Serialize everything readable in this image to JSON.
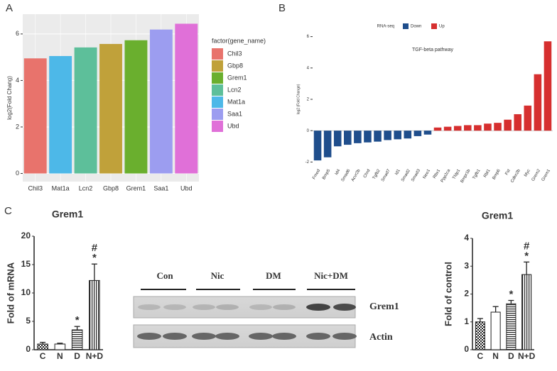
{
  "panel_labels": [
    "A",
    "B",
    "C"
  ],
  "chart_data": [
    {
      "type": "bar",
      "y_label": "log2(Fold Chang)",
      "categories": [
        "Chil3",
        "Mat1a",
        "Lcn2",
        "Gbp8",
        "Grem1",
        "Saa1",
        "Ubd"
      ],
      "values": [
        4.95,
        5.05,
        5.42,
        5.57,
        5.73,
        6.19,
        6.44
      ],
      "colors": [
        "#e8736c",
        "#4db8e8",
        "#5dbf9a",
        "#c0a13a",
        "#6aaf2e",
        "#9c9df0",
        "#e070d8"
      ],
      "ylim": [
        -0.35,
        6.85
      ],
      "yticks": [
        0,
        2,
        4,
        6
      ],
      "grid": true,
      "panel_background": "#ebebeb",
      "legend_title": "factor(gene_name)",
      "legend": [
        {
          "name": "Chil3",
          "color": "#e8736c"
        },
        {
          "name": "Gbp8",
          "color": "#c0a13a"
        },
        {
          "name": "Grem1",
          "color": "#6aaf2e"
        },
        {
          "name": "Lcn2",
          "color": "#5dbf9a"
        },
        {
          "name": "Mat1a",
          "color": "#4db8e8"
        },
        {
          "name": "Saa1",
          "color": "#9c9df0"
        },
        {
          "name": "Ubd",
          "color": "#e070d8"
        }
      ]
    },
    {
      "type": "bar",
      "title": "TGF-beta pathway",
      "y_label": "log2 (Fold Change)",
      "legend_title": "RNA-seq",
      "categories": [
        "Fmod",
        "Bmp5",
        "Id4",
        "Smad6",
        "Acvr2b",
        "Chrd",
        "Tgfb2",
        "Smad7",
        "Id1",
        "Smad2",
        "Smad3",
        "Neo1",
        "Rbx1",
        "Ppp2ca",
        "Tfdp1",
        "Bmpr1b",
        "Tgfb1",
        "Rbl1",
        "Bmp6",
        "Fst",
        "Cdkn2b",
        "Myc",
        "Grem2",
        "Grem1"
      ],
      "series": [
        {
          "name": "Down",
          "color": "#1f4e8c",
          "values": [
            -1.9,
            -1.7,
            -1.0,
            -0.9,
            -0.8,
            -0.75,
            -0.7,
            -0.6,
            -0.55,
            -0.5,
            -0.35,
            -0.25,
            null,
            null,
            null,
            null,
            null,
            null,
            null,
            null,
            null,
            null,
            null,
            null
          ]
        },
        {
          "name": "Up",
          "color": "#d62f2f",
          "values": [
            null,
            null,
            null,
            null,
            null,
            null,
            null,
            null,
            null,
            null,
            null,
            null,
            0.2,
            0.25,
            0.3,
            0.35,
            0.35,
            0.45,
            0.5,
            0.7,
            1.05,
            1.6,
            3.6,
            5.7
          ]
        }
      ],
      "ylim": [
        -2.3,
        6.3
      ],
      "yticks": [
        -2,
        0,
        2,
        4,
        6
      ],
      "grid": false,
      "xlabel_rotation": -60
    },
    {
      "type": "bar",
      "title": "Grem1",
      "y_label": "Fold of mRNA",
      "categories": [
        "C",
        "N",
        "D",
        "N+D"
      ],
      "values": [
        1.0,
        1.0,
        3.5,
        12.2
      ],
      "errors": [
        0.3,
        0.15,
        0.6,
        2.9
      ],
      "patterns": [
        "checker",
        "plain",
        "hstripe",
        "vstripe"
      ],
      "annotations": [
        null,
        null,
        [
          "*"
        ],
        [
          "#",
          "*"
        ]
      ],
      "ylim": [
        0,
        20
      ],
      "yticks": [
        0,
        5,
        10,
        15,
        20
      ],
      "grid": false
    },
    {
      "type": "bar",
      "title": "Grem1",
      "y_label": "Fold of control",
      "categories": [
        "C",
        "N",
        "D",
        "N+D"
      ],
      "values": [
        1.0,
        1.35,
        1.65,
        2.7
      ],
      "errors": [
        0.12,
        0.2,
        0.12,
        0.45
      ],
      "patterns": [
        "checker",
        "plain",
        "hstripe",
        "vstripe"
      ],
      "annotations": [
        null,
        null,
        [
          "*"
        ],
        [
          "#",
          "*"
        ]
      ],
      "ylim": [
        0,
        4
      ],
      "yticks": [
        0,
        1,
        2,
        3,
        4
      ],
      "grid": false
    }
  ],
  "blot": {
    "lanes": [
      "Con",
      "Nic",
      "DM",
      "Nic+DM"
    ],
    "rows": [
      "Grem1",
      "Actin"
    ]
  }
}
